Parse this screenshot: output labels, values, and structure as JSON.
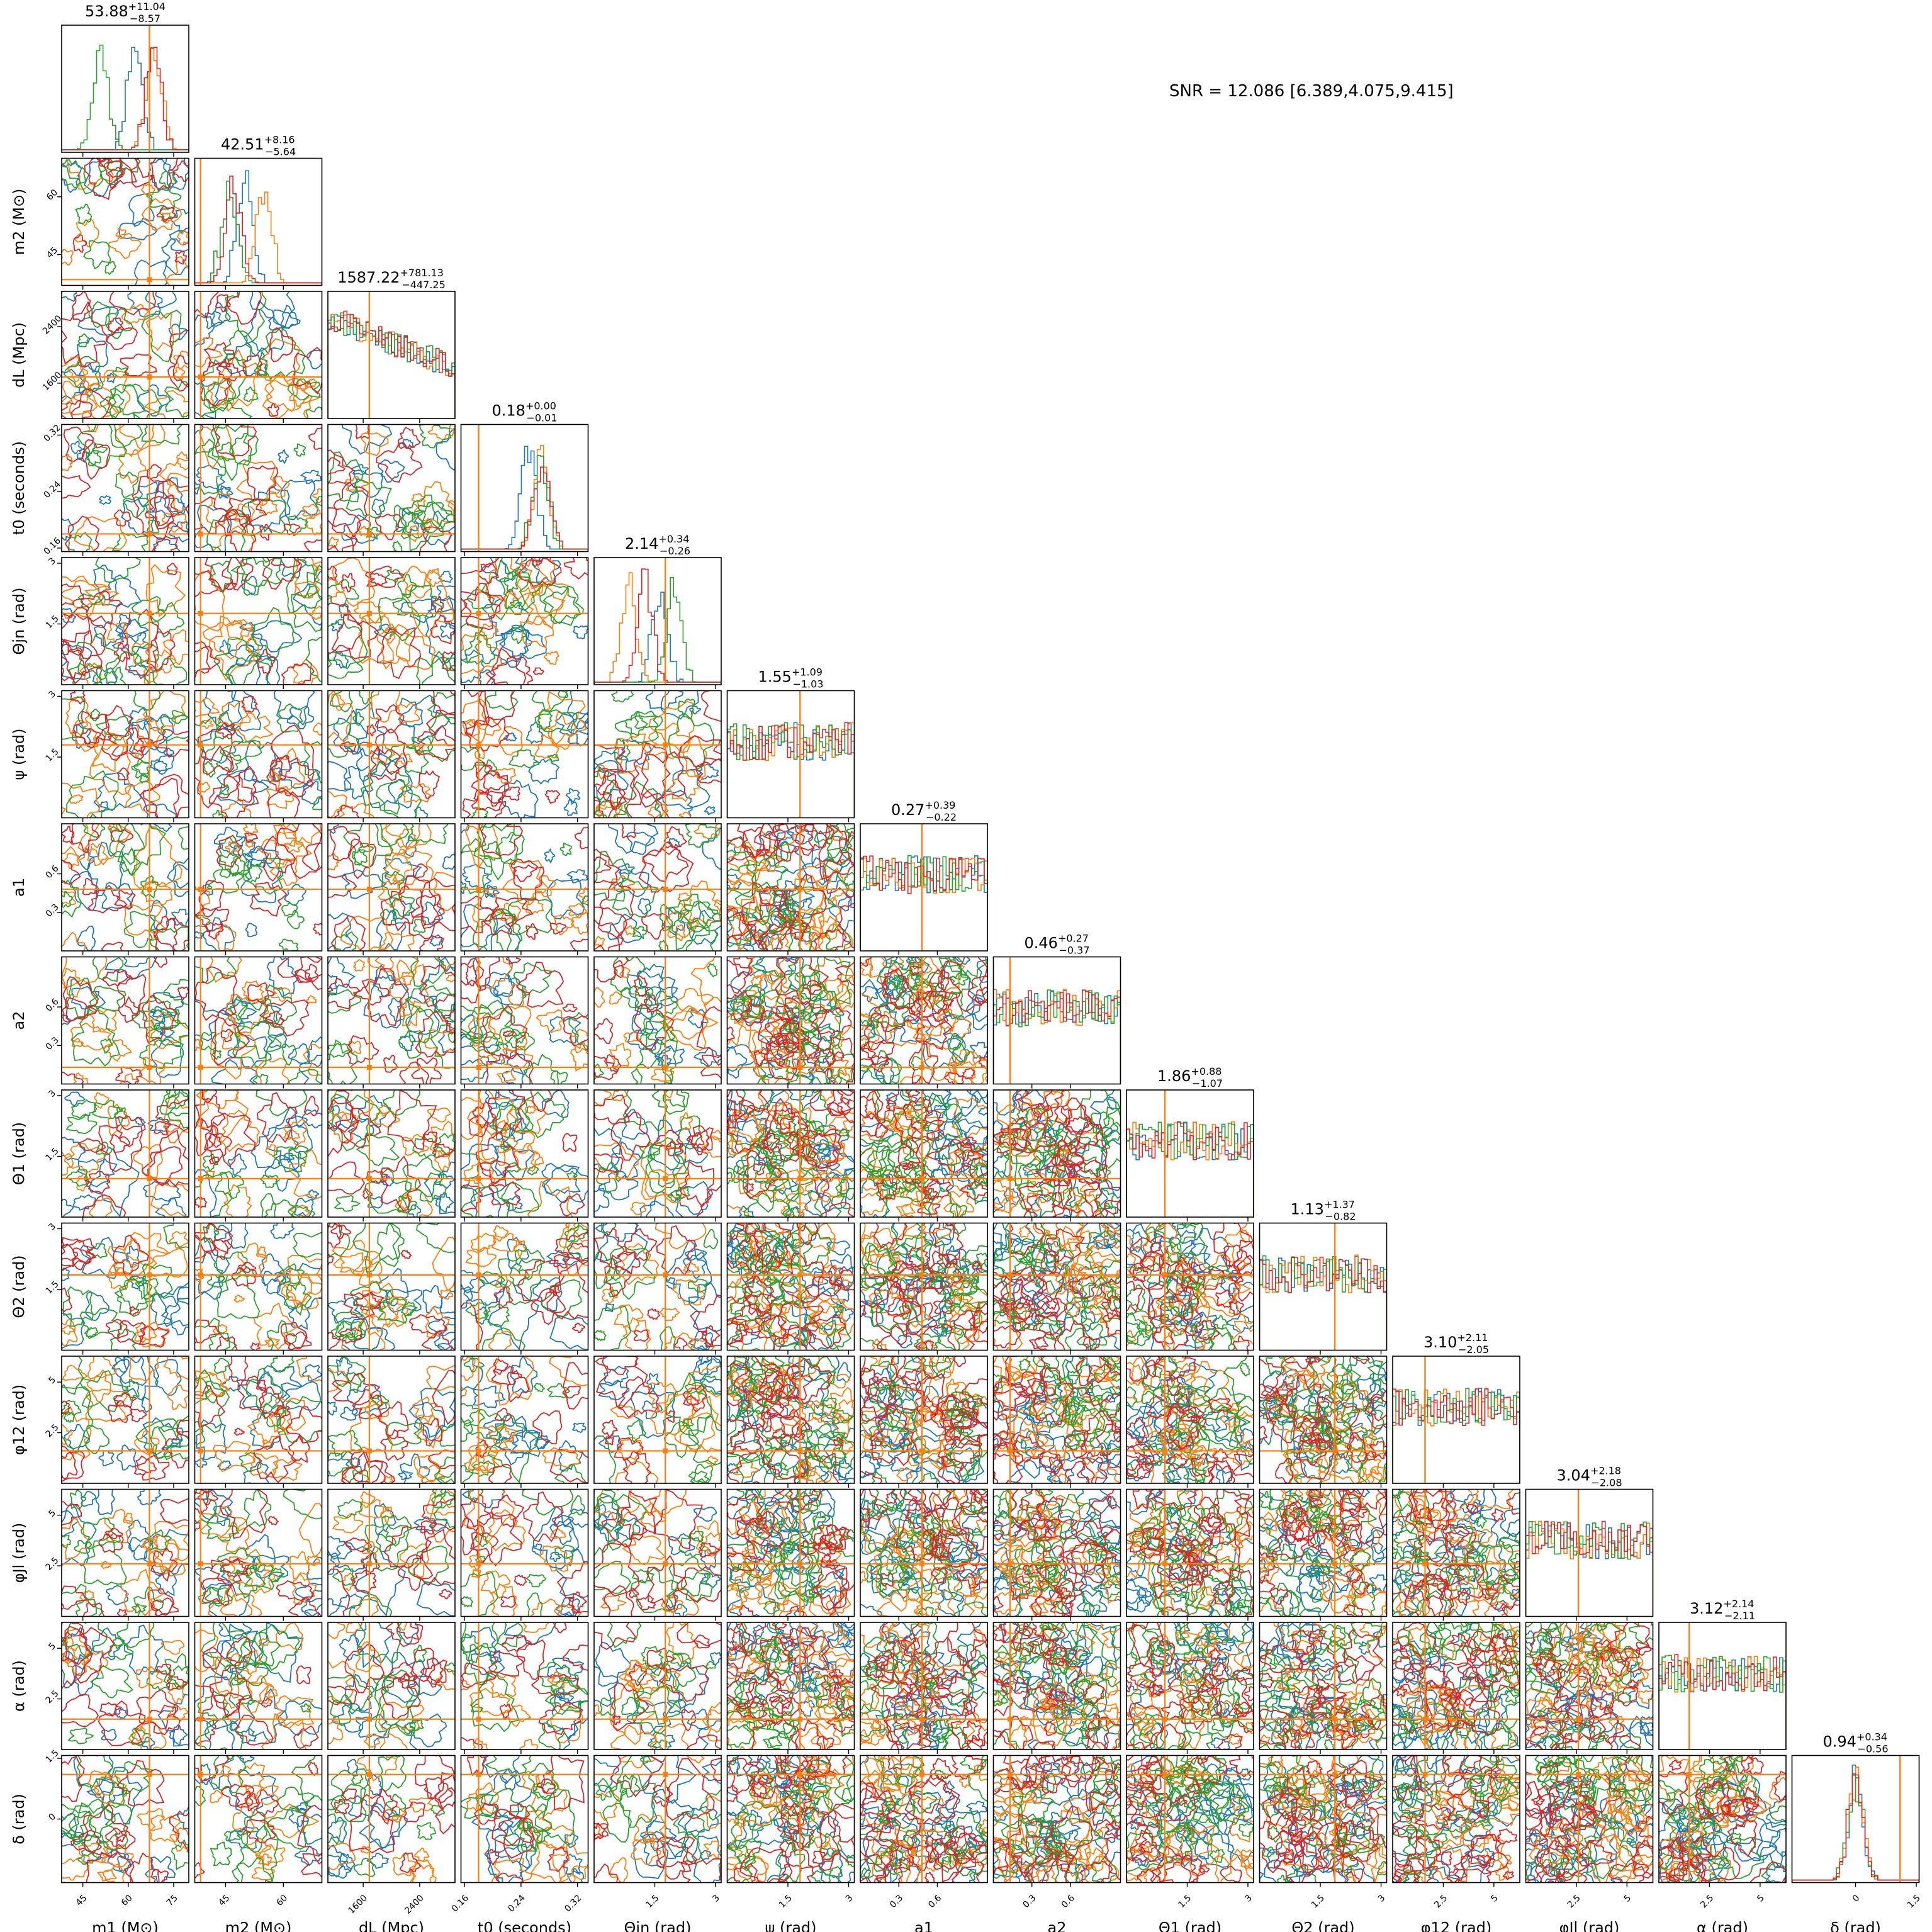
{
  "snr_text": "SNR = 12.086 [6.389,4.075,9.415]",
  "colors": {
    "series": [
      "#1f77b4",
      "#ff7f0e",
      "#2ca02c",
      "#d62728"
    ],
    "truth": "#ff7f0e"
  },
  "chart_data": {
    "type": "corner",
    "grid": false,
    "series": [
      {
        "color": "#1f77b4"
      },
      {
        "color": "#ff7f0e"
      },
      {
        "color": "#2ca02c"
      },
      {
        "color": "#d62728"
      }
    ],
    "parameters": [
      {
        "label": "m1 (M⊙)",
        "range": [
          38,
          80
        ],
        "ticks": [
          45,
          60,
          75
        ],
        "truth": 67,
        "summary": "53.88",
        "plus": "+11.04",
        "minus": "−8.57"
      },
      {
        "label": "m2 (M⊙)",
        "range": [
          37,
          70
        ],
        "ticks": [
          45,
          60
        ],
        "truth": 38.5,
        "summary": "42.51",
        "plus": "+8.16",
        "minus": "−5.64"
      },
      {
        "label": "dL (Mpc)",
        "range": [
          1100,
          2900
        ],
        "ticks": [
          1600,
          2400
        ],
        "truth": 1687,
        "summary": "1587.22",
        "plus": "+781.13",
        "minus": "−447.25"
      },
      {
        "label": "t0 (seconds)",
        "range": [
          0.155,
          0.335
        ],
        "ticks": [
          0.16,
          0.24,
          0.32
        ],
        "truth": 0.18,
        "summary": "0.18",
        "plus": "+0.00",
        "minus": "−0.01"
      },
      {
        "label": "Θjn (rad)",
        "range": [
          0,
          3.14
        ],
        "ticks": [
          1.5,
          3.0
        ],
        "truth": 1.76,
        "summary": "2.14",
        "plus": "+0.34",
        "minus": "−0.26"
      },
      {
        "label": "ψ (rad)",
        "range": [
          0,
          3.14
        ],
        "ticks": [
          1.5,
          3.0
        ],
        "truth": 1.8,
        "summary": "1.55",
        "plus": "+1.09",
        "minus": "−1.03"
      },
      {
        "label": "a1",
        "range": [
          0,
          0.99
        ],
        "ticks": [
          0.3,
          0.6
        ],
        "truth": 0.48,
        "summary": "0.27",
        "plus": "+0.39",
        "minus": "−0.22"
      },
      {
        "label": "a2",
        "range": [
          0,
          0.99
        ],
        "ticks": [
          0.3,
          0.6
        ],
        "truth": 0.13,
        "summary": "0.46",
        "plus": "+0.27",
        "minus": "−0.37"
      },
      {
        "label": "Θ1 (rad)",
        "range": [
          0,
          3.14
        ],
        "ticks": [
          1.5,
          3.0
        ],
        "truth": 0.95,
        "summary": "1.86",
        "plus": "+0.88",
        "minus": "−1.07"
      },
      {
        "label": "Θ2 (rad)",
        "range": [
          0,
          3.14
        ],
        "ticks": [
          1.5,
          3.0
        ],
        "truth": 1.86,
        "summary": "1.13",
        "plus": "+1.37",
        "minus": "−0.82"
      },
      {
        "label": "φ12 (rad)",
        "range": [
          0,
          6.28
        ],
        "ticks": [
          2.5,
          5.0
        ],
        "truth": 1.6,
        "summary": "3.10",
        "plus": "+2.11",
        "minus": "−2.05"
      },
      {
        "label": "φJl (rad)",
        "range": [
          0,
          6.28
        ],
        "ticks": [
          2.5,
          5.0
        ],
        "truth": 2.6,
        "summary": "3.04",
        "plus": "+2.18",
        "minus": "−2.08"
      },
      {
        "label": "α (rad)",
        "range": [
          0,
          6.28
        ],
        "ticks": [
          2.5,
          5.0
        ],
        "truth": 1.5,
        "summary": "3.12",
        "plus": "+2.14",
        "minus": "−2.11"
      },
      {
        "label": "δ (rad)",
        "range": [
          -1.57,
          1.57
        ],
        "ticks": [
          0.0,
          1.5
        ],
        "truth": 1.1,
        "summary": "0.94",
        "plus": "+0.34",
        "minus": "−0.56"
      }
    ]
  }
}
